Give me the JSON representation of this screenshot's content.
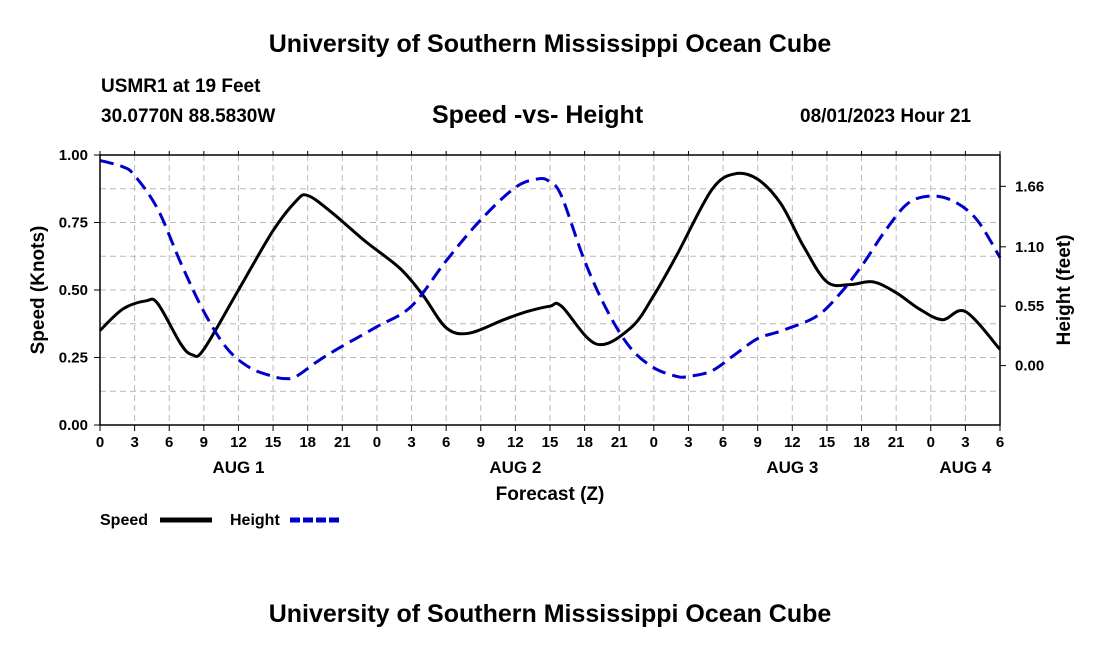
{
  "header": {
    "title": "University of Southern Mississippi Ocean Cube",
    "station": "USMR1 at 19 Feet",
    "coords": "30.0770N  88.5830W",
    "subtitle": "Speed -vs- Height",
    "datetime": "08/01/2023 Hour 21"
  },
  "footer": {
    "title": "University of Southern Mississippi Ocean Cube"
  },
  "chart_data": {
    "type": "line",
    "xlabel": "Forecast (Z)",
    "x_hours": [
      0,
      78
    ],
    "x_tick_labels": [
      "0",
      "3",
      "6",
      "9",
      "12",
      "15",
      "18",
      "21",
      "0",
      "3",
      "6",
      "9",
      "12",
      "15",
      "18",
      "21",
      "0",
      "3",
      "6",
      "9",
      "12",
      "15",
      "18",
      "21",
      "0",
      "3",
      "6"
    ],
    "date_labels": [
      {
        "label": "AUG 1",
        "hour": 12
      },
      {
        "label": "AUG 2",
        "hour": 36
      },
      {
        "label": "AUG 3",
        "hour": 60
      },
      {
        "label": "AUG 4",
        "hour": 75
      }
    ],
    "y_left": {
      "label": "Speed (Knots)",
      "range": [
        0,
        1
      ],
      "ticks": [
        "0.00",
        "0.25",
        "0.50",
        "0.75",
        "1.00"
      ]
    },
    "y_right": {
      "label": "Height (feet)",
      "range": [
        -0.55,
        1.95
      ],
      "ticks": [
        0.0,
        0.55,
        1.1,
        1.66
      ],
      "tick_labels": [
        "0.00",
        "0.55",
        "1.10",
        "1.66"
      ]
    },
    "grid": true,
    "series": [
      {
        "name": "Speed",
        "axis": "left",
        "color": "#000000",
        "style": "solid",
        "x": [
          0,
          2,
          4,
          5,
          7,
          8,
          9,
          12,
          15,
          17,
          18,
          20,
          23,
          26,
          28,
          30,
          32,
          35,
          37,
          39,
          40,
          43,
          46,
          48,
          50,
          53,
          55,
          57,
          59,
          61,
          63,
          65,
          67,
          69,
          71,
          73,
          75,
          78
        ],
        "y": [
          0.35,
          0.43,
          0.46,
          0.45,
          0.3,
          0.26,
          0.28,
          0.5,
          0.72,
          0.83,
          0.85,
          0.79,
          0.68,
          0.58,
          0.48,
          0.36,
          0.34,
          0.39,
          0.42,
          0.44,
          0.44,
          0.3,
          0.36,
          0.48,
          0.63,
          0.87,
          0.93,
          0.91,
          0.82,
          0.66,
          0.53,
          0.52,
          0.53,
          0.49,
          0.43,
          0.39,
          0.42,
          0.28
        ]
      },
      {
        "name": "Height",
        "axis": "right",
        "color": "#0000cc",
        "style": "dashed",
        "x": [
          0,
          2,
          3,
          5,
          7,
          9,
          11,
          13,
          15,
          16,
          17,
          19,
          21,
          24,
          27,
          30,
          33,
          36,
          38,
          39,
          40,
          42,
          44,
          46,
          48,
          50,
          51,
          53,
          55,
          57,
          59,
          62,
          64,
          66,
          68,
          70,
          72,
          74,
          76,
          78
        ],
        "y": [
          1.9,
          1.84,
          1.76,
          1.45,
          0.95,
          0.5,
          0.16,
          -0.02,
          -0.1,
          -0.12,
          -0.1,
          0.05,
          0.18,
          0.36,
          0.55,
          0.97,
          1.35,
          1.65,
          1.73,
          1.7,
          1.57,
          0.97,
          0.5,
          0.16,
          -0.02,
          -0.1,
          -0.1,
          -0.05,
          0.1,
          0.25,
          0.32,
          0.45,
          0.65,
          0.92,
          1.24,
          1.5,
          1.57,
          1.52,
          1.35,
          1.0
        ]
      }
    ]
  }
}
